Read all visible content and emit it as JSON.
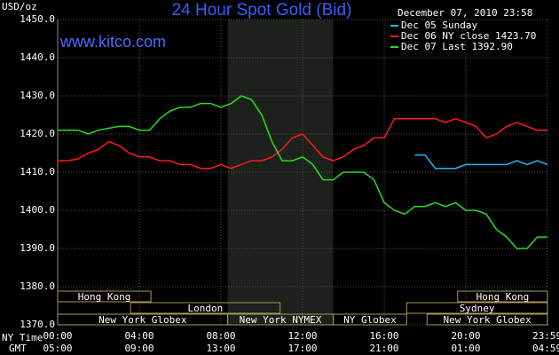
{
  "chart_data": {
    "type": "line",
    "title": "24 Hour Spot Gold (Bid)",
    "subtitle": "www.kitco.com",
    "timestamp": "December 07, 2010 23:58",
    "y_label": "USD/oz",
    "x_label": "NY Time",
    "x2_label": "GMT",
    "grid": true,
    "x": [
      0,
      0.5,
      1,
      1.5,
      2,
      2.5,
      3,
      3.5,
      4,
      4.5,
      5,
      5.5,
      6,
      6.5,
      7,
      7.5,
      8,
      8.5,
      9,
      9.5,
      10,
      10.5,
      11,
      11.5,
      12,
      12.5,
      13,
      13.5,
      14,
      14.5,
      15,
      15.5,
      16,
      16.5,
      17,
      17.5,
      18,
      18.5,
      19,
      19.5,
      20,
      20.5,
      21,
      21.5,
      22,
      22.5,
      23,
      23.5,
      24
    ],
    "series": [
      {
        "name": "Dec 05 Sunday",
        "color": "#22b8f0",
        "values": [
          null,
          null,
          null,
          null,
          null,
          null,
          null,
          null,
          null,
          null,
          null,
          null,
          null,
          null,
          null,
          null,
          null,
          null,
          null,
          null,
          null,
          null,
          null,
          null,
          null,
          null,
          null,
          null,
          null,
          null,
          null,
          null,
          null,
          null,
          null,
          1414.5,
          1414.5,
          1411,
          1411,
          1411,
          1412,
          1412,
          1412,
          1412,
          1412,
          1413,
          1412,
          1413,
          1412
        ]
      },
      {
        "name": "Dec 06 NY close 1423.70",
        "color": "#ff1a1a",
        "values": [
          1413,
          1413,
          1413.5,
          1415,
          1416,
          1418,
          1417,
          1415,
          1414,
          1414,
          1413,
          1413,
          1412,
          1412,
          1411,
          1411,
          1412,
          1411,
          1412,
          1413,
          1413,
          1414,
          1416,
          1419,
          1420,
          1417,
          1414,
          1413,
          1414,
          1416,
          1417,
          1419,
          1419,
          1424,
          1424,
          1424,
          1424,
          1424,
          1423,
          1424,
          1423,
          1422,
          1419,
          1420,
          1422,
          1423,
          1422,
          1421,
          1421
        ]
      },
      {
        "name": "Dec 07 Last 1392.90",
        "color": "#22e022",
        "values": [
          1421,
          1421,
          1421,
          1420,
          1421,
          1421.5,
          1422,
          1422,
          1421,
          1421,
          1424,
          1426,
          1427,
          1427,
          1428,
          1428,
          1427,
          1428,
          1430,
          1429,
          1425,
          1418,
          1413,
          1413,
          1414,
          1412,
          1408,
          1408,
          1410,
          1410,
          1410,
          1408,
          1402,
          1400,
          1399,
          1401,
          1401,
          1402,
          1401,
          1402,
          1400,
          1400,
          1399,
          1395,
          1393,
          1390,
          1390,
          1393,
          1393
        ]
      }
    ],
    "xlim": [
      0,
      24
    ],
    "ylim": [
      1370,
      1450
    ],
    "yticks": [
      {
        "value": 1370,
        "label": "1370.0"
      },
      {
        "value": 1380,
        "label": "1380.0"
      },
      {
        "value": 1390,
        "label": "1390.0"
      },
      {
        "value": 1400,
        "label": "1400.0"
      },
      {
        "value": 1410,
        "label": "1410.0"
      },
      {
        "value": 1420,
        "label": "1420.0"
      },
      {
        "value": 1430,
        "label": "1430.0"
      },
      {
        "value": 1440,
        "label": "1440.0"
      },
      {
        "value": 1450,
        "label": "1450.0"
      }
    ],
    "xticks": [
      {
        "value": 0,
        "label": "00:00"
      },
      {
        "value": 4,
        "label": "04:00"
      },
      {
        "value": 8,
        "label": "08:00"
      },
      {
        "value": 12,
        "label": "12:00"
      },
      {
        "value": 16,
        "label": "16:00"
      },
      {
        "value": 20,
        "label": "20:00"
      },
      {
        "value": 23.983,
        "label": "23:59"
      }
    ],
    "x2ticks": [
      {
        "value": 0,
        "label": "05:00"
      },
      {
        "value": 4,
        "label": "09:00"
      },
      {
        "value": 8,
        "label": "13:00"
      },
      {
        "value": 12,
        "label": "17:00"
      },
      {
        "value": 16,
        "label": "21:00"
      },
      {
        "value": 20,
        "label": "01:00"
      },
      {
        "value": 23.983,
        "label": "04:59"
      }
    ],
    "sessions": [
      [
        {
          "label": "Hong Kong",
          "start": 0,
          "end": 4.57
        },
        {
          "label": "Hong Kong",
          "start": 19.6,
          "end": 24
        }
      ],
      [
        {
          "label": "London",
          "start": 3.57,
          "end": 10.9
        },
        {
          "label": "Sydney",
          "start": 17.1,
          "end": 24
        }
      ],
      [
        {
          "label": "New York Globex",
          "start": 0,
          "end": 8.33
        },
        {
          "label": "New York NYMEX",
          "start": 8.33,
          "end": 13.5,
          "shaded": true
        },
        {
          "label": "NY Globex",
          "start": 13.5,
          "end": 17.1
        },
        {
          "label": "New York Globex",
          "start": 18.1,
          "end": 24
        }
      ]
    ]
  }
}
